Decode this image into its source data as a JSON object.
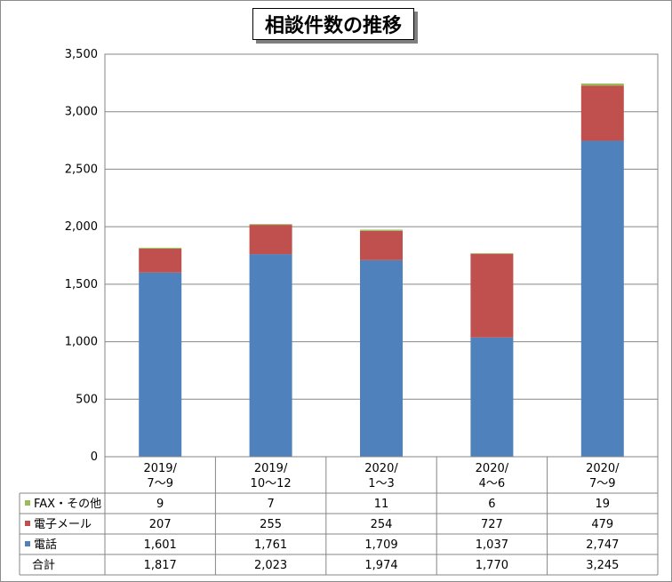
{
  "chart_data": {
    "type": "bar",
    "stacked": true,
    "title": "相談件数の推移",
    "categories": [
      [
        "2019/",
        "7～9"
      ],
      [
        "2019/",
        "10～12"
      ],
      [
        "2020/",
        "1～3"
      ],
      [
        "2020/",
        "4～6"
      ],
      [
        "2020/",
        "7～9"
      ]
    ],
    "series": [
      {
        "name": "電話",
        "color": "#4f81bd",
        "values": [
          1601,
          1761,
          1709,
          1037,
          2747
        ],
        "labels": [
          "1,601",
          "1,761",
          "1,709",
          "1,037",
          "2,747"
        ]
      },
      {
        "name": "電子メール",
        "color": "#c0504d",
        "values": [
          207,
          255,
          254,
          727,
          479
        ],
        "labels": [
          "207",
          "255",
          "254",
          "727",
          "479"
        ]
      },
      {
        "name": "FAX・その他",
        "color": "#9bbb59",
        "values": [
          9,
          7,
          11,
          6,
          19
        ],
        "labels": [
          "9",
          "7",
          "11",
          "6",
          "19"
        ]
      }
    ],
    "totals": {
      "name": "合計",
      "values": [
        1817,
        2023,
        1974,
        1770,
        3245
      ],
      "labels": [
        "1,817",
        "2,023",
        "1,974",
        "1,770",
        "3,245"
      ]
    },
    "ylim": [
      0,
      3500
    ],
    "yticks": [
      0,
      500,
      1000,
      1500,
      2000,
      2500,
      3000,
      3500
    ],
    "ytick_labels": [
      "0",
      "500",
      "1,000",
      "1,500",
      "2,000",
      "2,500",
      "3,000",
      "3,500"
    ],
    "grid": true,
    "legend": "data-table"
  }
}
